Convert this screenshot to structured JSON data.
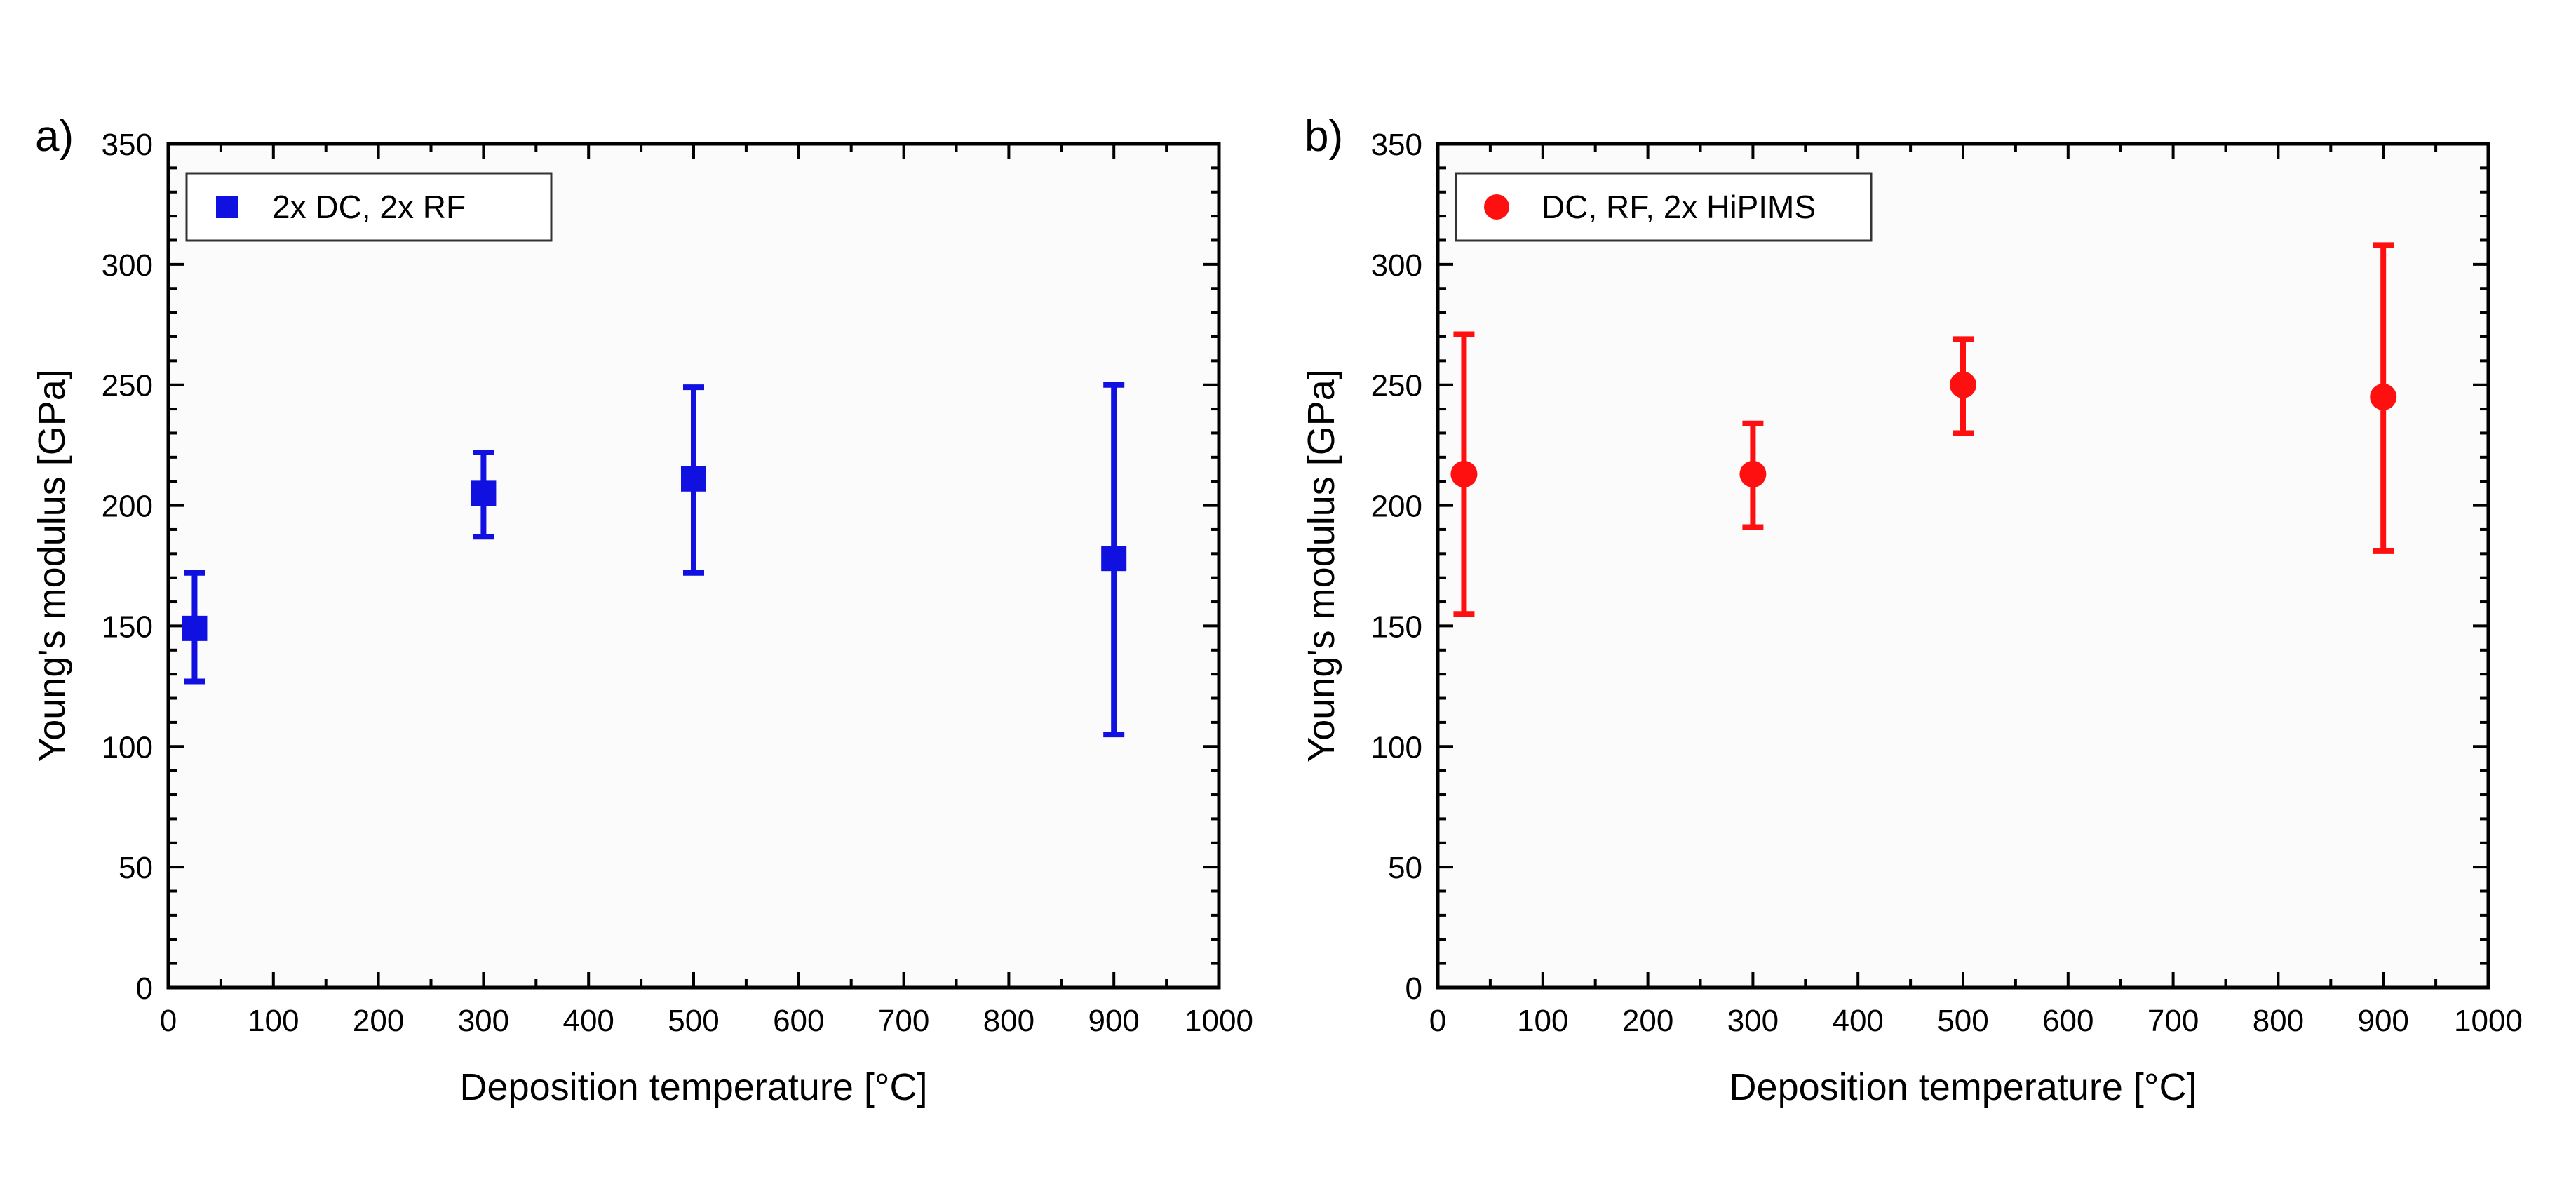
{
  "figure_title": "",
  "chart_data": [
    {
      "type": "scatter",
      "panel_label": "a)",
      "title": "",
      "xlabel": "Deposition temperature [°C]",
      "ylabel": "Young's modulus [GPa]",
      "xlim": [
        0,
        1000
      ],
      "ylim": [
        0,
        350
      ],
      "xticks": [
        0,
        100,
        200,
        300,
        400,
        500,
        600,
        700,
        800,
        900,
        1000
      ],
      "yticks": [
        0,
        50,
        100,
        150,
        200,
        250,
        300,
        350
      ],
      "grid": false,
      "legend_position": "top-left",
      "series": [
        {
          "name": "2x DC, 2x RF",
          "marker": "square",
          "color": "#1010e0",
          "points": [
            {
              "x": 25,
              "y": 149,
              "err_low": 127,
              "err_high": 172
            },
            {
              "x": 300,
              "y": 205,
              "err_low": 187,
              "err_high": 222
            },
            {
              "x": 500,
              "y": 211,
              "err_low": 172,
              "err_high": 249
            },
            {
              "x": 900,
              "y": 178,
              "err_low": 105,
              "err_high": 250
            }
          ]
        }
      ]
    },
    {
      "type": "scatter",
      "panel_label": "b)",
      "title": "",
      "xlabel": "Deposition temperature [°C]",
      "ylabel": "Young's modulus [GPa]",
      "xlim": [
        0,
        1000
      ],
      "ylim": [
        0,
        350
      ],
      "xticks": [
        0,
        100,
        200,
        300,
        400,
        500,
        600,
        700,
        800,
        900,
        1000
      ],
      "yticks": [
        0,
        50,
        100,
        150,
        200,
        250,
        300,
        350
      ],
      "grid": false,
      "legend_position": "top-left",
      "series": [
        {
          "name": "DC, RF, 2x HiPIMS",
          "marker": "circle",
          "color": "#ff1010",
          "points": [
            {
              "x": 25,
              "y": 213,
              "err_low": 155,
              "err_high": 271
            },
            {
              "x": 300,
              "y": 213,
              "err_low": 191,
              "err_high": 234
            },
            {
              "x": 500,
              "y": 250,
              "err_low": 230,
              "err_high": 269
            },
            {
              "x": 900,
              "y": 245,
              "err_low": 181,
              "err_high": 308
            }
          ]
        }
      ]
    }
  ]
}
